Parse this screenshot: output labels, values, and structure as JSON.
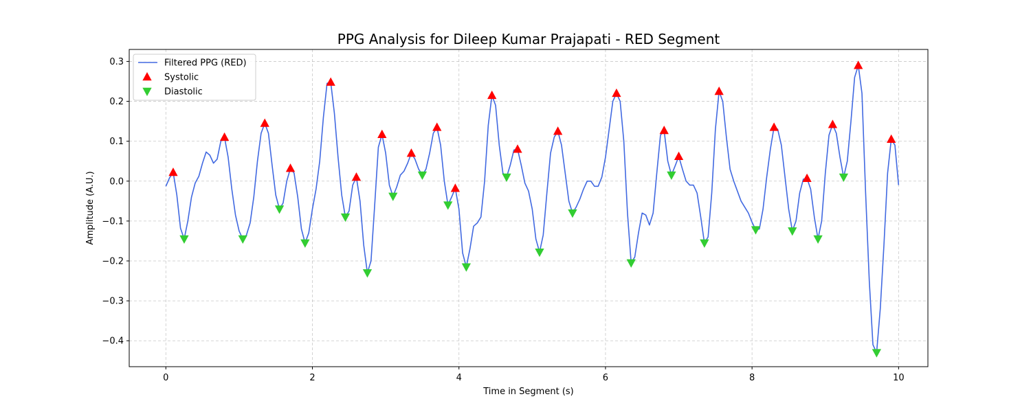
{
  "chart_data": {
    "type": "line",
    "title": "PPG Analysis for Dileep Kumar Prajapati - RED Segment",
    "xlabel": "Time in Segment (s)",
    "ylabel": "Amplitude (A.U.)",
    "xlim": [
      -0.5,
      10.4
    ],
    "ylim": [
      -0.465,
      0.33
    ],
    "x_ticks": [
      0,
      2,
      4,
      6,
      8,
      10
    ],
    "y_ticks": [
      -0.4,
      -0.3,
      -0.2,
      -0.1,
      0.0,
      0.1,
      0.2,
      0.3
    ],
    "x_tick_labels": [
      "0",
      "2",
      "4",
      "6",
      "8",
      "10"
    ],
    "y_tick_labels": [
      "−0.4",
      "−0.3",
      "−0.2",
      "−0.1",
      "0.0",
      "0.1",
      "0.2",
      "0.3"
    ],
    "grid": true,
    "legend_position": "top-left",
    "colors": {
      "line": "#4169e1",
      "systolic": "#ff0000",
      "diastolic": "#32cd32"
    },
    "series": [
      {
        "name": "Filtered PPG (RED)",
        "kind": "line",
        "points": [
          [
            0.0,
            -0.013
          ],
          [
            0.05,
            0.008
          ],
          [
            0.1,
            0.022
          ],
          [
            0.15,
            -0.035
          ],
          [
            0.2,
            -0.118
          ],
          [
            0.25,
            -0.145
          ],
          [
            0.3,
            -0.1
          ],
          [
            0.35,
            -0.04
          ],
          [
            0.4,
            -0.005
          ],
          [
            0.45,
            0.012
          ],
          [
            0.5,
            0.045
          ],
          [
            0.55,
            0.073
          ],
          [
            0.6,
            0.065
          ],
          [
            0.65,
            0.045
          ],
          [
            0.7,
            0.055
          ],
          [
            0.75,
            0.1
          ],
          [
            0.8,
            0.11
          ],
          [
            0.85,
            0.06
          ],
          [
            0.9,
            -0.02
          ],
          [
            0.95,
            -0.085
          ],
          [
            1.0,
            -0.125
          ],
          [
            1.05,
            -0.145
          ],
          [
            1.1,
            -0.135
          ],
          [
            1.15,
            -0.105
          ],
          [
            1.2,
            -0.04
          ],
          [
            1.25,
            0.05
          ],
          [
            1.3,
            0.12
          ],
          [
            1.35,
            0.145
          ],
          [
            1.4,
            0.12
          ],
          [
            1.45,
            0.04
          ],
          [
            1.5,
            -0.035
          ],
          [
            1.55,
            -0.07
          ],
          [
            1.6,
            -0.055
          ],
          [
            1.65,
            0.0
          ],
          [
            1.7,
            0.032
          ],
          [
            1.75,
            0.02
          ],
          [
            1.8,
            -0.04
          ],
          [
            1.85,
            -0.12
          ],
          [
            1.9,
            -0.155
          ],
          [
            1.95,
            -0.13
          ],
          [
            2.0,
            -0.07
          ],
          [
            2.05,
            -0.02
          ],
          [
            2.1,
            0.05
          ],
          [
            2.15,
            0.16
          ],
          [
            2.2,
            0.245
          ],
          [
            2.25,
            0.248
          ],
          [
            2.3,
            0.17
          ],
          [
            2.35,
            0.06
          ],
          [
            2.4,
            -0.035
          ],
          [
            2.45,
            -0.09
          ],
          [
            2.5,
            -0.075
          ],
          [
            2.55,
            -0.01
          ],
          [
            2.6,
            0.01
          ],
          [
            2.65,
            -0.05
          ],
          [
            2.7,
            -0.16
          ],
          [
            2.75,
            -0.23
          ],
          [
            2.8,
            -0.2
          ],
          [
            2.85,
            -0.06
          ],
          [
            2.9,
            0.085
          ],
          [
            2.95,
            0.117
          ],
          [
            3.0,
            0.07
          ],
          [
            3.05,
            -0.01
          ],
          [
            3.1,
            -0.038
          ],
          [
            3.15,
            -0.015
          ],
          [
            3.2,
            0.015
          ],
          [
            3.25,
            0.025
          ],
          [
            3.3,
            0.045
          ],
          [
            3.35,
            0.07
          ],
          [
            3.4,
            0.055
          ],
          [
            3.45,
            0.03
          ],
          [
            3.5,
            0.015
          ],
          [
            3.55,
            0.03
          ],
          [
            3.6,
            0.07
          ],
          [
            3.65,
            0.12
          ],
          [
            3.7,
            0.135
          ],
          [
            3.75,
            0.09
          ],
          [
            3.8,
            0.0
          ],
          [
            3.85,
            -0.06
          ],
          [
            3.9,
            -0.04
          ],
          [
            3.95,
            -0.018
          ],
          [
            4.0,
            -0.07
          ],
          [
            4.05,
            -0.18
          ],
          [
            4.1,
            -0.215
          ],
          [
            4.15,
            -0.17
          ],
          [
            4.2,
            -0.113
          ],
          [
            4.25,
            -0.105
          ],
          [
            4.3,
            -0.09
          ],
          [
            4.35,
            0.0
          ],
          [
            4.4,
            0.14
          ],
          [
            4.45,
            0.215
          ],
          [
            4.5,
            0.19
          ],
          [
            4.55,
            0.09
          ],
          [
            4.6,
            0.02
          ],
          [
            4.65,
            0.01
          ],
          [
            4.7,
            0.04
          ],
          [
            4.75,
            0.078
          ],
          [
            4.8,
            0.08
          ],
          [
            4.85,
            0.04
          ],
          [
            4.9,
            -0.005
          ],
          [
            4.95,
            -0.025
          ],
          [
            5.0,
            -0.07
          ],
          [
            5.05,
            -0.145
          ],
          [
            5.1,
            -0.178
          ],
          [
            5.15,
            -0.135
          ],
          [
            5.2,
            -0.03
          ],
          [
            5.25,
            0.07
          ],
          [
            5.3,
            0.11
          ],
          [
            5.35,
            0.125
          ],
          [
            5.4,
            0.09
          ],
          [
            5.45,
            0.02
          ],
          [
            5.5,
            -0.05
          ],
          [
            5.55,
            -0.08
          ],
          [
            5.6,
            -0.065
          ],
          [
            5.65,
            -0.045
          ],
          [
            5.7,
            -0.02
          ],
          [
            5.75,
            0.0
          ],
          [
            5.8,
            0.0
          ],
          [
            5.85,
            -0.013
          ],
          [
            5.9,
            -0.013
          ],
          [
            5.95,
            0.01
          ],
          [
            6.0,
            0.06
          ],
          [
            6.05,
            0.13
          ],
          [
            6.1,
            0.2
          ],
          [
            6.15,
            0.22
          ],
          [
            6.2,
            0.2
          ],
          [
            6.25,
            0.1
          ],
          [
            6.3,
            -0.08
          ],
          [
            6.35,
            -0.205
          ],
          [
            6.4,
            -0.19
          ],
          [
            6.45,
            -0.13
          ],
          [
            6.5,
            -0.08
          ],
          [
            6.55,
            -0.085
          ],
          [
            6.6,
            -0.11
          ],
          [
            6.65,
            -0.08
          ],
          [
            6.7,
            0.02
          ],
          [
            6.75,
            0.115
          ],
          [
            6.8,
            0.127
          ],
          [
            6.85,
            0.05
          ],
          [
            6.9,
            0.015
          ],
          [
            6.95,
            0.038
          ],
          [
            7.0,
            0.062
          ],
          [
            7.05,
            0.03
          ],
          [
            7.1,
            0.0
          ],
          [
            7.15,
            -0.01
          ],
          [
            7.2,
            -0.01
          ],
          [
            7.25,
            -0.03
          ],
          [
            7.3,
            -0.09
          ],
          [
            7.35,
            -0.155
          ],
          [
            7.4,
            -0.14
          ],
          [
            7.45,
            -0.03
          ],
          [
            7.5,
            0.13
          ],
          [
            7.55,
            0.225
          ],
          [
            7.6,
            0.2
          ],
          [
            7.65,
            0.11
          ],
          [
            7.7,
            0.03
          ],
          [
            7.75,
            0.0
          ],
          [
            7.8,
            -0.025
          ],
          [
            7.85,
            -0.05
          ],
          [
            7.9,
            -0.065
          ],
          [
            7.95,
            -0.08
          ],
          [
            8.0,
            -0.103
          ],
          [
            8.05,
            -0.122
          ],
          [
            8.1,
            -0.12
          ],
          [
            8.15,
            -0.07
          ],
          [
            8.2,
            0.01
          ],
          [
            8.25,
            0.08
          ],
          [
            8.3,
            0.135
          ],
          [
            8.35,
            0.13
          ],
          [
            8.4,
            0.09
          ],
          [
            8.45,
            0.01
          ],
          [
            8.5,
            -0.07
          ],
          [
            8.55,
            -0.125
          ],
          [
            8.6,
            -0.1
          ],
          [
            8.65,
            -0.03
          ],
          [
            8.7,
            0.005
          ],
          [
            8.75,
            0.007
          ],
          [
            8.8,
            -0.02
          ],
          [
            8.85,
            -0.09
          ],
          [
            8.9,
            -0.145
          ],
          [
            8.95,
            -0.1
          ],
          [
            9.0,
            0.02
          ],
          [
            9.05,
            0.115
          ],
          [
            9.1,
            0.142
          ],
          [
            9.15,
            0.12
          ],
          [
            9.2,
            0.06
          ],
          [
            9.25,
            0.01
          ],
          [
            9.3,
            0.05
          ],
          [
            9.35,
            0.15
          ],
          [
            9.4,
            0.26
          ],
          [
            9.45,
            0.29
          ],
          [
            9.5,
            0.22
          ],
          [
            9.55,
            -0.03
          ],
          [
            9.6,
            -0.25
          ],
          [
            9.65,
            -0.41
          ],
          [
            9.7,
            -0.43
          ],
          [
            9.75,
            -0.32
          ],
          [
            9.8,
            -0.16
          ],
          [
            9.85,
            0.02
          ],
          [
            9.9,
            0.105
          ],
          [
            9.95,
            0.09
          ],
          [
            10.0,
            -0.01
          ]
        ]
      },
      {
        "name": "Systolic",
        "kind": "markers",
        "marker": "triangle-up",
        "points": [
          [
            0.1,
            0.022
          ],
          [
            0.8,
            0.11
          ],
          [
            1.35,
            0.145
          ],
          [
            1.7,
            0.032
          ],
          [
            2.25,
            0.248
          ],
          [
            2.6,
            0.01
          ],
          [
            2.95,
            0.117
          ],
          [
            3.35,
            0.07
          ],
          [
            3.7,
            0.135
          ],
          [
            3.95,
            -0.018
          ],
          [
            4.45,
            0.215
          ],
          [
            4.8,
            0.08
          ],
          [
            5.35,
            0.125
          ],
          [
            6.15,
            0.22
          ],
          [
            6.8,
            0.127
          ],
          [
            7.0,
            0.062
          ],
          [
            7.55,
            0.225
          ],
          [
            8.3,
            0.135
          ],
          [
            8.75,
            0.007
          ],
          [
            9.1,
            0.142
          ],
          [
            9.45,
            0.29
          ],
          [
            9.9,
            0.105
          ]
        ]
      },
      {
        "name": "Diastolic",
        "kind": "markers",
        "marker": "triangle-down",
        "points": [
          [
            0.25,
            -0.145
          ],
          [
            1.05,
            -0.145
          ],
          [
            1.55,
            -0.07
          ],
          [
            1.9,
            -0.155
          ],
          [
            2.45,
            -0.09
          ],
          [
            2.75,
            -0.23
          ],
          [
            3.1,
            -0.038
          ],
          [
            3.5,
            0.015
          ],
          [
            3.85,
            -0.06
          ],
          [
            4.1,
            -0.215
          ],
          [
            4.65,
            0.01
          ],
          [
            5.1,
            -0.178
          ],
          [
            5.55,
            -0.08
          ],
          [
            6.35,
            -0.205
          ],
          [
            6.9,
            0.015
          ],
          [
            7.35,
            -0.155
          ],
          [
            8.05,
            -0.122
          ],
          [
            8.55,
            -0.125
          ],
          [
            8.9,
            -0.145
          ],
          [
            9.25,
            0.01
          ],
          [
            9.7,
            -0.43
          ]
        ]
      }
    ]
  }
}
